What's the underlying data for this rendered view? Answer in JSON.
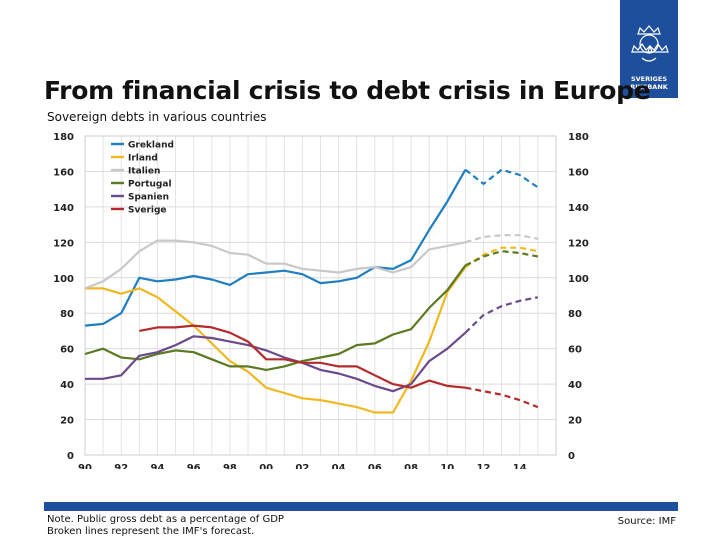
{
  "logo": {
    "line1": "SVERIGES",
    "line2": "RIKSBANK"
  },
  "header": {
    "title": "From financial crisis to debt crisis in Europe",
    "subtitle": "Sovereign debts in various countries"
  },
  "footer": {
    "note_line1": "Note. Public gross debt as a percentage of GDP",
    "note_line2": "Broken lines represent the IMF's forecast.",
    "source": "Source: IMF"
  },
  "chart_data": {
    "type": "line",
    "x_tick_labels": [
      "90",
      "92",
      "94",
      "96",
      "98",
      "00",
      "02",
      "04",
      "06",
      "08",
      "10",
      "12",
      "14"
    ],
    "x_range": [
      1990,
      2016
    ],
    "ylim": [
      0,
      180
    ],
    "y_ticks": [
      0,
      20,
      40,
      60,
      80,
      100,
      120,
      140,
      160,
      180
    ],
    "grid": true,
    "legend_position": "top-left",
    "series": [
      {
        "name": "Grekland",
        "color": "#1f7fc0",
        "actual": [
          [
            1990,
            73
          ],
          [
            1991,
            74
          ],
          [
            1992,
            80
          ],
          [
            1993,
            100
          ],
          [
            1994,
            98
          ],
          [
            1995,
            99
          ],
          [
            1996,
            101
          ],
          [
            1997,
            99
          ],
          [
            1998,
            96
          ],
          [
            1999,
            102
          ],
          [
            2000,
            103
          ],
          [
            2001,
            104
          ],
          [
            2002,
            102
          ],
          [
            2003,
            97
          ],
          [
            2004,
            98
          ],
          [
            2005,
            100
          ],
          [
            2006,
            106
          ],
          [
            2007,
            105
          ],
          [
            2008,
            110
          ],
          [
            2009,
            127
          ],
          [
            2010,
            143
          ],
          [
            2011,
            161
          ]
        ],
        "forecast": [
          [
            2011,
            161
          ],
          [
            2012,
            153
          ],
          [
            2013,
            161
          ],
          [
            2014,
            158
          ],
          [
            2015,
            151
          ]
        ]
      },
      {
        "name": "Irland",
        "color": "#f0b81e",
        "actual": [
          [
            1990,
            94
          ],
          [
            1991,
            94
          ],
          [
            1992,
            91
          ],
          [
            1993,
            94
          ],
          [
            1994,
            89
          ],
          [
            1995,
            81
          ],
          [
            1996,
            73
          ],
          [
            1997,
            63
          ],
          [
            1998,
            53
          ],
          [
            1999,
            47
          ],
          [
            2000,
            38
          ],
          [
            2001,
            35
          ],
          [
            2002,
            32
          ],
          [
            2003,
            31
          ],
          [
            2004,
            29
          ],
          [
            2005,
            27
          ],
          [
            2006,
            24
          ],
          [
            2007,
            24
          ],
          [
            2008,
            42
          ],
          [
            2009,
            64
          ],
          [
            2010,
            92
          ],
          [
            2011,
            106
          ]
        ],
        "forecast": [
          [
            2011,
            106
          ],
          [
            2012,
            113
          ],
          [
            2013,
            117
          ],
          [
            2014,
            117
          ],
          [
            2015,
            115
          ]
        ]
      },
      {
        "name": "Italien",
        "color": "#c8c8c8",
        "actual": [
          [
            1990,
            94
          ],
          [
            1991,
            98
          ],
          [
            1992,
            105
          ],
          [
            1993,
            115
          ],
          [
            1994,
            121
          ],
          [
            1995,
            121
          ],
          [
            1996,
            120
          ],
          [
            1997,
            118
          ],
          [
            1998,
            114
          ],
          [
            1999,
            113
          ],
          [
            2000,
            108
          ],
          [
            2001,
            108
          ],
          [
            2002,
            105
          ],
          [
            2003,
            104
          ],
          [
            2004,
            103
          ],
          [
            2005,
            105
          ],
          [
            2006,
            106
          ],
          [
            2007,
            103
          ],
          [
            2008,
            106
          ],
          [
            2009,
            116
          ],
          [
            2010,
            118
          ],
          [
            2011,
            120
          ]
        ],
        "forecast": [
          [
            2011,
            120
          ],
          [
            2012,
            123
          ],
          [
            2013,
            124
          ],
          [
            2014,
            124
          ],
          [
            2015,
            122
          ]
        ]
      },
      {
        "name": "Portugal",
        "color": "#5c7a22",
        "actual": [
          [
            1990,
            57
          ],
          [
            1991,
            60
          ],
          [
            1992,
            55
          ],
          [
            1993,
            54
          ],
          [
            1994,
            57
          ],
          [
            1995,
            59
          ],
          [
            1996,
            58
          ],
          [
            1997,
            54
          ],
          [
            1998,
            50
          ],
          [
            1999,
            50
          ],
          [
            2000,
            48
          ],
          [
            2001,
            50
          ],
          [
            2002,
            53
          ],
          [
            2003,
            55
          ],
          [
            2004,
            57
          ],
          [
            2005,
            62
          ],
          [
            2006,
            63
          ],
          [
            2007,
            68
          ],
          [
            2008,
            71
          ],
          [
            2009,
            83
          ],
          [
            2010,
            93
          ],
          [
            2011,
            107
          ]
        ],
        "forecast": [
          [
            2011,
            107
          ],
          [
            2012,
            112
          ],
          [
            2013,
            115
          ],
          [
            2014,
            114
          ],
          [
            2015,
            112
          ]
        ]
      },
      {
        "name": "Spanien",
        "color": "#6b4a8a",
        "actual": [
          [
            1990,
            43
          ],
          [
            1991,
            43
          ],
          [
            1992,
            45
          ],
          [
            1993,
            56
          ],
          [
            1994,
            58
          ],
          [
            1995,
            62
          ],
          [
            1996,
            67
          ],
          [
            1997,
            66
          ],
          [
            1998,
            64
          ],
          [
            1999,
            62
          ],
          [
            2000,
            59
          ],
          [
            2001,
            55
          ],
          [
            2002,
            52
          ],
          [
            2003,
            48
          ],
          [
            2004,
            46
          ],
          [
            2005,
            43
          ],
          [
            2006,
            39
          ],
          [
            2007,
            36
          ],
          [
            2008,
            40
          ],
          [
            2009,
            53
          ],
          [
            2010,
            60
          ],
          [
            2011,
            69
          ]
        ],
        "forecast": [
          [
            2011,
            69
          ],
          [
            2012,
            79
          ],
          [
            2013,
            84
          ],
          [
            2014,
            87
          ],
          [
            2015,
            89
          ]
        ]
      },
      {
        "name": "Sverige",
        "color": "#b52a2a",
        "actual": [
          [
            1993,
            70
          ],
          [
            1994,
            72
          ],
          [
            1995,
            72
          ],
          [
            1996,
            73
          ],
          [
            1997,
            72
          ],
          [
            1998,
            69
          ],
          [
            1999,
            64
          ],
          [
            2000,
            54
          ],
          [
            2001,
            54
          ],
          [
            2002,
            52
          ],
          [
            2003,
            52
          ],
          [
            2004,
            50
          ],
          [
            2005,
            50
          ],
          [
            2006,
            45
          ],
          [
            2007,
            40
          ],
          [
            2008,
            38
          ],
          [
            2009,
            42
          ],
          [
            2010,
            39
          ],
          [
            2011,
            38
          ]
        ],
        "forecast": [
          [
            2011,
            38
          ],
          [
            2012,
            36
          ],
          [
            2013,
            34
          ],
          [
            2014,
            31
          ],
          [
            2015,
            27
          ]
        ]
      }
    ]
  }
}
